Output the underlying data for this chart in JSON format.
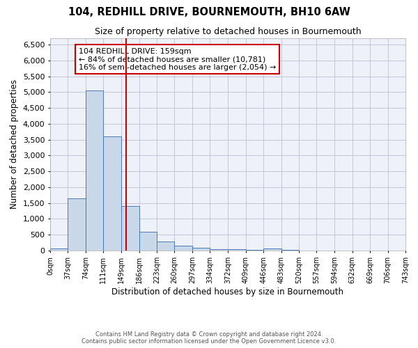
{
  "title1": "104, REDHILL DRIVE, BOURNEMOUTH, BH10 6AW",
  "title2": "Size of property relative to detached houses in Bournemouth",
  "xlabel": "Distribution of detached houses by size in Bournemouth",
  "ylabel": "Number of detached properties",
  "footnote1": "Contains HM Land Registry data © Crown copyright and database right 2024.",
  "footnote2": "Contains public sector information licensed under the Open Government Licence v3.0.",
  "annotation_line1": "104 REDHILL DRIVE: 159sqm",
  "annotation_line2": "← 84% of detached houses are smaller (10,781)",
  "annotation_line3": "16% of semi-detached houses are larger (2,054) →",
  "property_size": 159,
  "bar_edges": [
    0,
    37,
    74,
    111,
    149,
    186,
    223,
    260,
    297,
    334,
    372,
    409,
    446,
    483,
    520,
    557,
    594,
    632,
    669,
    706,
    743
  ],
  "bar_heights": [
    70,
    1650,
    5050,
    3600,
    1400,
    600,
    290,
    150,
    80,
    50,
    40,
    30,
    60,
    15,
    10,
    8,
    5,
    5,
    3,
    2
  ],
  "bar_color": "#c8d8e8",
  "bar_edge_color": "#4a7ab5",
  "background_color": "#eef2f8",
  "vline_color": "#cc0000",
  "ylim": [
    0,
    6700
  ],
  "yticks": [
    0,
    500,
    1000,
    1500,
    2000,
    2500,
    3000,
    3500,
    4000,
    4500,
    5000,
    5500,
    6000,
    6500
  ],
  "grid_color": "#c0c8d8",
  "annotation_box_color": "#cc0000",
  "tick_labels": [
    "0sqm",
    "37sqm",
    "74sqm",
    "111sqm",
    "149sqm",
    "186sqm",
    "223sqm",
    "260sqm",
    "297sqm",
    "334sqm",
    "372sqm",
    "409sqm",
    "446sqm",
    "483sqm",
    "520sqm",
    "557sqm",
    "594sqm",
    "632sqm",
    "669sqm",
    "706sqm",
    "743sqm"
  ]
}
